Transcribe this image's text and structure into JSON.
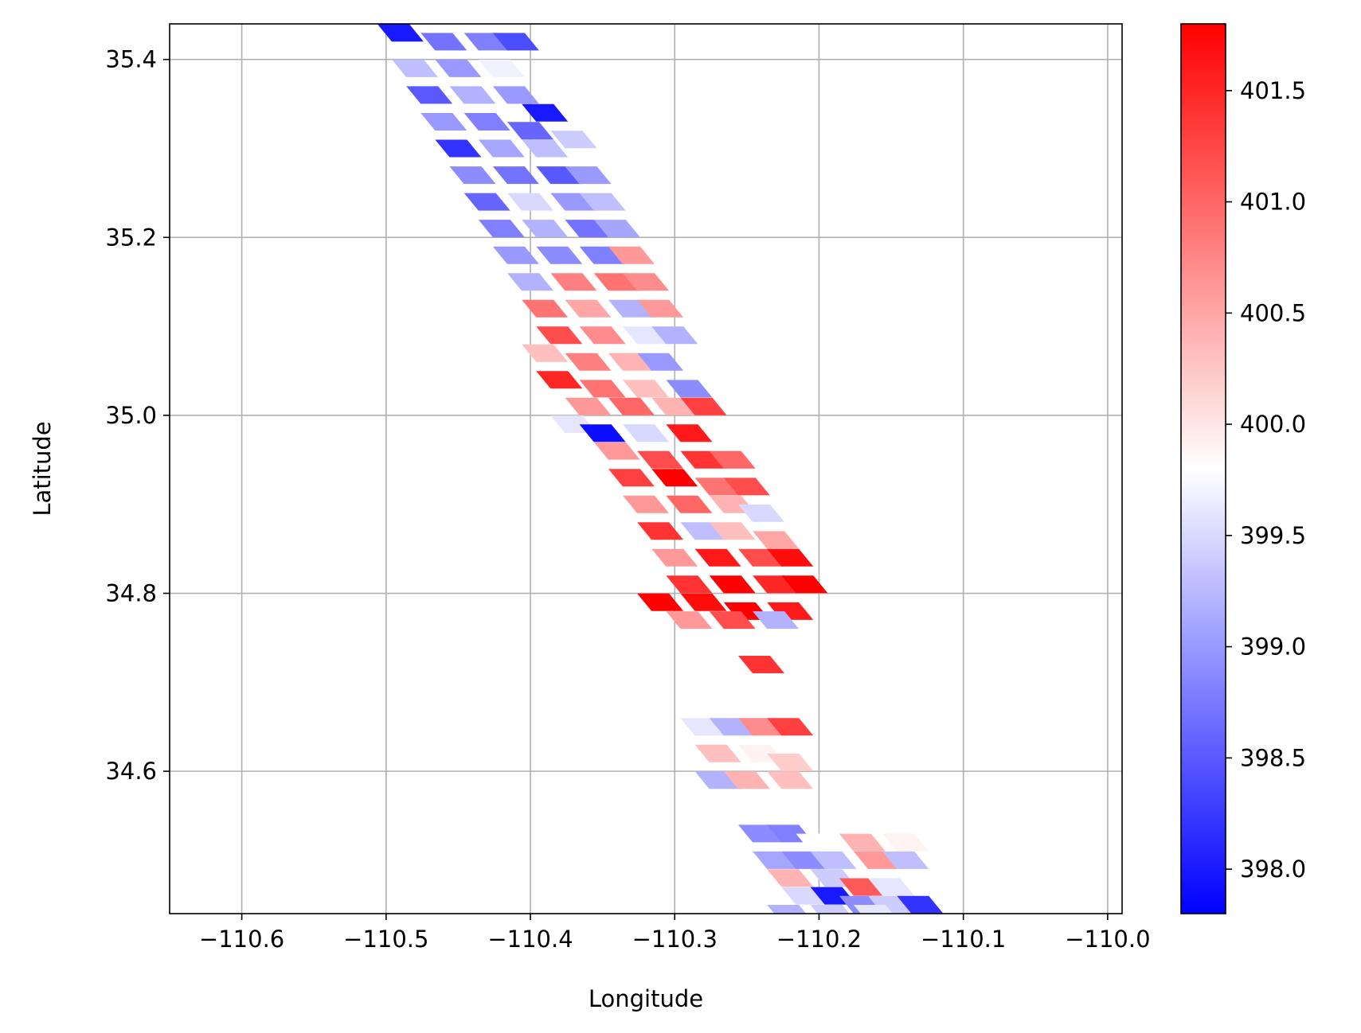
{
  "chart_data": {
    "type": "scatter",
    "title": "",
    "xlabel": "Longitude",
    "ylabel": "Latitude",
    "xlim": [
      -110.65,
      -109.99
    ],
    "ylim": [
      34.44,
      35.44
    ],
    "x_ticks": [
      -110.6,
      -110.5,
      -110.4,
      -110.3,
      -110.2,
      -110.1,
      -110.0
    ],
    "x_tick_labels": [
      "−110.6",
      "−110.5",
      "−110.4",
      "−110.3",
      "−110.2",
      "−110.1",
      "−110.0"
    ],
    "y_ticks": [
      34.6,
      34.8,
      35.0,
      35.2,
      35.4
    ],
    "y_tick_labels": [
      "34.6",
      "34.8",
      "35.0",
      "35.2",
      "35.4"
    ],
    "grid": true,
    "colormap": "bwr",
    "colorbar": {
      "range": [
        397.8,
        401.8
      ],
      "ticks": [
        398.0,
        398.5,
        399.0,
        399.5,
        400.0,
        400.5,
        401.0,
        401.5
      ],
      "tick_labels": [
        "398.0",
        "398.5",
        "399.0",
        "399.5",
        "400.0",
        "400.5",
        "401.0",
        "401.5"
      ]
    },
    "points": [
      [
        -110.49,
        35.43,
        398.0
      ],
      [
        -110.46,
        35.42,
        398.7
      ],
      [
        -110.43,
        35.42,
        398.8
      ],
      [
        -110.41,
        35.42,
        398.4
      ],
      [
        -110.48,
        35.39,
        399.3
      ],
      [
        -110.45,
        35.39,
        399.0
      ],
      [
        -110.42,
        35.39,
        399.7
      ],
      [
        -110.47,
        35.36,
        398.5
      ],
      [
        -110.44,
        35.36,
        399.2
      ],
      [
        -110.41,
        35.36,
        399.0
      ],
      [
        -110.39,
        35.34,
        398.0
      ],
      [
        -110.46,
        35.33,
        399.0
      ],
      [
        -110.43,
        35.33,
        398.8
      ],
      [
        -110.4,
        35.32,
        398.6
      ],
      [
        -110.45,
        35.3,
        398.2
      ],
      [
        -110.42,
        35.3,
        399.1
      ],
      [
        -110.39,
        35.3,
        399.3
      ],
      [
        -110.37,
        35.31,
        399.4
      ],
      [
        -110.44,
        35.27,
        398.9
      ],
      [
        -110.41,
        35.27,
        398.7
      ],
      [
        -110.38,
        35.27,
        398.5
      ],
      [
        -110.36,
        35.27,
        399.0
      ],
      [
        -110.43,
        35.24,
        398.6
      ],
      [
        -110.4,
        35.24,
        399.5
      ],
      [
        -110.37,
        35.24,
        399.0
      ],
      [
        -110.35,
        35.24,
        399.3
      ],
      [
        -110.42,
        35.21,
        398.8
      ],
      [
        -110.39,
        35.21,
        399.2
      ],
      [
        -110.36,
        35.21,
        398.7
      ],
      [
        -110.34,
        35.21,
        399.1
      ],
      [
        -110.41,
        35.18,
        399.0
      ],
      [
        -110.38,
        35.18,
        398.9
      ],
      [
        -110.35,
        35.18,
        398.8
      ],
      [
        -110.33,
        35.18,
        400.6
      ],
      [
        -110.4,
        35.15,
        399.2
      ],
      [
        -110.37,
        35.15,
        400.8
      ],
      [
        -110.34,
        35.15,
        400.9
      ],
      [
        -110.32,
        35.15,
        400.7
      ],
      [
        -110.39,
        35.12,
        400.9
      ],
      [
        -110.36,
        35.12,
        400.5
      ],
      [
        -110.33,
        35.12,
        399.2
      ],
      [
        -110.31,
        35.12,
        400.6
      ],
      [
        -110.38,
        35.09,
        401.2
      ],
      [
        -110.35,
        35.09,
        400.7
      ],
      [
        -110.32,
        35.09,
        399.6
      ],
      [
        -110.3,
        35.09,
        399.2
      ],
      [
        -110.39,
        35.07,
        400.3
      ],
      [
        -110.36,
        35.06,
        400.8
      ],
      [
        -110.33,
        35.06,
        400.4
      ],
      [
        -110.31,
        35.06,
        399.0
      ],
      [
        -110.38,
        35.04,
        401.5
      ],
      [
        -110.35,
        35.03,
        400.9
      ],
      [
        -110.32,
        35.03,
        400.3
      ],
      [
        -110.29,
        35.03,
        398.9
      ],
      [
        -110.36,
        35.01,
        400.6
      ],
      [
        -110.33,
        35.01,
        401.0
      ],
      [
        -110.3,
        35.01,
        400.4
      ],
      [
        -110.28,
        35.01,
        401.3
      ],
      [
        -110.37,
        34.99,
        399.6
      ],
      [
        -110.35,
        34.98,
        397.9
      ],
      [
        -110.32,
        34.98,
        399.5
      ],
      [
        -110.29,
        34.98,
        401.6
      ],
      [
        -110.34,
        34.96,
        400.6
      ],
      [
        -110.31,
        34.95,
        401.2
      ],
      [
        -110.28,
        34.95,
        401.4
      ],
      [
        -110.26,
        34.95,
        401.0
      ],
      [
        -110.33,
        34.93,
        401.3
      ],
      [
        -110.3,
        34.93,
        401.8
      ],
      [
        -110.27,
        34.92,
        400.9
      ],
      [
        -110.25,
        34.92,
        401.2
      ],
      [
        -110.32,
        34.9,
        400.6
      ],
      [
        -110.29,
        34.9,
        401.0
      ],
      [
        -110.26,
        34.9,
        400.4
      ],
      [
        -110.24,
        34.89,
        399.5
      ],
      [
        -110.31,
        34.87,
        401.4
      ],
      [
        -110.28,
        34.87,
        399.3
      ],
      [
        -110.26,
        34.87,
        400.3
      ],
      [
        -110.23,
        34.86,
        400.5
      ],
      [
        -110.3,
        34.84,
        400.6
      ],
      [
        -110.27,
        34.84,
        401.6
      ],
      [
        -110.24,
        34.84,
        401.2
      ],
      [
        -110.22,
        34.84,
        401.7
      ],
      [
        -110.29,
        34.81,
        401.4
      ],
      [
        -110.26,
        34.81,
        401.8
      ],
      [
        -110.23,
        34.81,
        401.5
      ],
      [
        -110.21,
        34.81,
        401.9
      ],
      [
        -110.31,
        34.79,
        401.9
      ],
      [
        -110.28,
        34.79,
        401.7
      ],
      [
        -110.25,
        34.78,
        401.9
      ],
      [
        -110.22,
        34.78,
        401.6
      ],
      [
        -110.29,
        34.77,
        400.6
      ],
      [
        -110.26,
        34.77,
        401.2
      ],
      [
        -110.23,
        34.77,
        399.2
      ],
      [
        -110.24,
        34.72,
        401.4
      ],
      [
        -110.28,
        34.65,
        399.6
      ],
      [
        -110.26,
        34.65,
        399.2
      ],
      [
        -110.24,
        34.65,
        400.7
      ],
      [
        -110.22,
        34.65,
        401.3
      ],
      [
        -110.27,
        34.62,
        400.3
      ],
      [
        -110.24,
        34.62,
        399.9
      ],
      [
        -110.22,
        34.61,
        400.2
      ],
      [
        -110.27,
        34.59,
        399.2
      ],
      [
        -110.25,
        34.59,
        400.4
      ],
      [
        -110.22,
        34.59,
        400.3
      ],
      [
        -110.24,
        34.53,
        398.9
      ],
      [
        -110.22,
        34.53,
        398.8
      ],
      [
        -110.2,
        34.52,
        399.8
      ],
      [
        -110.17,
        34.52,
        400.4
      ],
      [
        -110.14,
        34.52,
        399.9
      ],
      [
        -110.23,
        34.5,
        399.1
      ],
      [
        -110.21,
        34.5,
        398.9
      ],
      [
        -110.19,
        34.5,
        399.3
      ],
      [
        -110.16,
        34.5,
        400.6
      ],
      [
        -110.14,
        34.5,
        399.3
      ],
      [
        -110.22,
        34.48,
        400.4
      ],
      [
        -110.19,
        34.48,
        399.4
      ],
      [
        -110.17,
        34.47,
        401.1
      ],
      [
        -110.15,
        34.47,
        399.6
      ],
      [
        -110.21,
        34.46,
        399.5
      ],
      [
        -110.19,
        34.46,
        398.0
      ],
      [
        -110.17,
        34.45,
        398.9
      ],
      [
        -110.15,
        34.45,
        399.4
      ],
      [
        -110.13,
        34.45,
        398.2
      ],
      [
        -110.22,
        34.44,
        399.2
      ],
      [
        -110.19,
        34.44,
        399.4
      ],
      [
        -110.16,
        34.44,
        399.6
      ]
    ]
  }
}
